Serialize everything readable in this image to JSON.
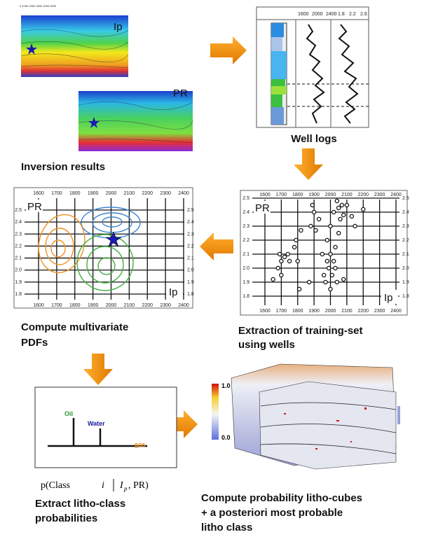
{
  "inversion": {
    "ip_label": "Ip",
    "pr_label": "PR",
    "caption": "Inversion results"
  },
  "well_logs": {
    "caption": "Well logs",
    "ip_ticks": [
      1600,
      2000,
      2400
    ],
    "pr_ticks": [
      1.8,
      2.2,
      2.6
    ]
  },
  "crossplot_axes": {
    "xticks": [
      1600,
      1700,
      1800,
      1900,
      2000,
      2100,
      2200,
      2300,
      2400
    ],
    "xlim": [
      1600,
      2400
    ],
    "yticks": [
      {
        "value": 1.8,
        "label": "1.8"
      },
      {
        "value": 1.9,
        "label": "1.9"
      },
      {
        "value": 2,
        "label": "2.0"
      },
      {
        "value": 2.1,
        "label": "2.1"
      },
      {
        "value": 2.2,
        "label": "2.2"
      },
      {
        "value": 2.3,
        "label": "2.3"
      },
      {
        "value": 2.4,
        "label": "2.4"
      },
      {
        "value": 2.5,
        "label": "2.5"
      }
    ],
    "ylim": [
      1.8,
      2.5
    ],
    "y_label": "PR",
    "x_label": "Ip"
  },
  "training_set": {
    "caption_lines": [
      "Extraction of training-set",
      "using wells"
    ],
    "x": [
      1690,
      1700,
      1720,
      1680,
      1740,
      1750,
      1700,
      1780,
      1790,
      1800,
      1650,
      1810,
      1820,
      1880,
      1890,
      1900,
      1910,
      1930,
      1950,
      1960,
      1970,
      1980,
      1990,
      2000,
      2010,
      2020,
      2030,
      2040,
      1980,
      2000,
      2020,
      2040,
      2050,
      2060,
      2070,
      2080,
      2100,
      2030,
      2050,
      2130,
      2150,
      2200,
      2080,
      1870,
      2000
    ],
    "y": [
      2.1,
      2.05,
      2.08,
      2.0,
      2.1,
      2.05,
      1.95,
      2.15,
      2.2,
      2.05,
      1.92,
      1.85,
      2.27,
      2.3,
      2.45,
      2.4,
      2.27,
      2.35,
      2.1,
      1.95,
      1.9,
      2.05,
      2.0,
      2.1,
      1.95,
      2.05,
      2.0,
      1.9,
      2.2,
      2.3,
      2.4,
      2.48,
      2.43,
      2.35,
      2.45,
      2.38,
      2.45,
      2.15,
      2.25,
      2.37,
      2.3,
      2.42,
      1.92,
      1.9,
      1.85
    ]
  },
  "pdfs": {
    "caption_lines": [
      "Compute multivariate",
      "PDFs"
    ]
  },
  "classes": {
    "oil": "Oil",
    "water": "Water",
    "gas": "gas",
    "formula": [
      "p(Class",
      "i",
      "I",
      "p",
      ", PR)"
    ],
    "caption_lines": [
      "Extract litho-class",
      "probabilities"
    ]
  },
  "cubes": {
    "colorbar_max": "1.0",
    "colorbar_min": "0.0",
    "caption_lines": [
      "Compute probability litho-cubes",
      "+ a posteriori most probable",
      "litho class"
    ]
  }
}
